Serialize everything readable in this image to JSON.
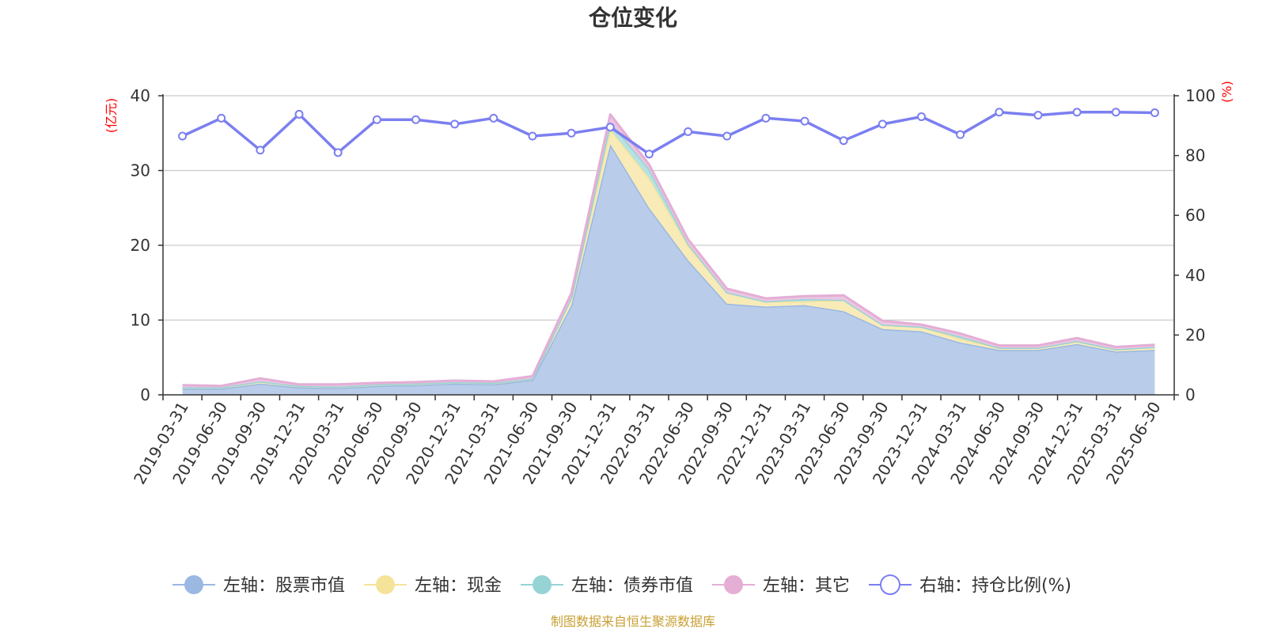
{
  "chart_data": {
    "type": "area",
    "title": "仓位变化",
    "left_axis_unit": "(亿元)",
    "right_axis_unit": "(%)",
    "ylim_left": [
      0,
      40
    ],
    "ylim_right": [
      0,
      100
    ],
    "yticks_left": [
      "0",
      "10",
      "20",
      "30",
      "40"
    ],
    "yticks_right": [
      "0",
      "20",
      "40",
      "60",
      "80",
      "100"
    ],
    "categories": [
      "2019-03-31",
      "2019-06-30",
      "2019-09-30",
      "2019-12-31",
      "2020-03-31",
      "2020-06-30",
      "2020-09-30",
      "2020-12-31",
      "2021-03-31",
      "2021-06-30",
      "2021-09-30",
      "2021-12-31",
      "2022-03-31",
      "2022-06-30",
      "2022-09-30",
      "2022-12-31",
      "2023-03-31",
      "2023-06-30",
      "2023-09-30",
      "2023-12-31",
      "2024-03-31",
      "2024-06-30",
      "2024-09-30",
      "2024-12-31",
      "2025-03-31",
      "2025-06-30"
    ],
    "series": [
      {
        "name": "左轴：股票市值",
        "axis": "left",
        "color": "#9ab8e2",
        "fill": "#b9cdea",
        "values": [
          0.8,
          0.8,
          1.5,
          1.0,
          0.9,
          1.2,
          1.3,
          1.5,
          1.4,
          2.0,
          12.0,
          33.5,
          25.0,
          18.0,
          12.2,
          11.8,
          12.0,
          11.2,
          8.8,
          8.5,
          7.0,
          6.0,
          6.0,
          6.8,
          5.8,
          6.0
        ]
      },
      {
        "name": "左轴：现金",
        "axis": "left",
        "color": "#f5e39a",
        "fill": "#f8ebb8",
        "values": [
          0.2,
          0.2,
          0.3,
          0.2,
          0.2,
          0.2,
          0.2,
          0.2,
          0.2,
          0.2,
          1.0,
          2.0,
          4.0,
          2.0,
          1.5,
          0.7,
          0.5,
          1.5,
          0.6,
          0.6,
          0.5,
          0.3,
          0.3,
          0.4,
          0.3,
          0.4
        ]
      },
      {
        "name": "左轴：债券市值",
        "axis": "left",
        "color": "#96d3d5",
        "fill": "#b5e2e3",
        "values": [
          0.0,
          0.0,
          0.0,
          0.0,
          0.0,
          0.0,
          0.0,
          0.0,
          0.0,
          0.0,
          0.0,
          1.0,
          1.2,
          0.2,
          0.0,
          0.0,
          0.3,
          0.0,
          0.0,
          0.0,
          0.3,
          0.0,
          0.0,
          0.0,
          0.0,
          0.0
        ]
      },
      {
        "name": "左轴：其它",
        "axis": "left",
        "color": "#e4aed5",
        "fill": "#ecc6e2",
        "values": [
          0.3,
          0.2,
          0.4,
          0.2,
          0.3,
          0.2,
          0.2,
          0.2,
          0.2,
          0.3,
          0.6,
          1.0,
          0.6,
          0.6,
          0.5,
          0.4,
          0.4,
          0.6,
          0.5,
          0.3,
          0.4,
          0.3,
          0.3,
          0.4,
          0.3,
          0.3
        ]
      },
      {
        "name": "右轴：持仓比例(%)",
        "axis": "right",
        "color": "#7b7ff0",
        "values": [
          86.5,
          92.5,
          81.8,
          93.8,
          81.0,
          92.0,
          92.0,
          90.5,
          92.5,
          86.5,
          87.5,
          89.5,
          80.5,
          88.0,
          86.5,
          92.5,
          91.5,
          85.0,
          90.5,
          93.0,
          87.0,
          94.5,
          93.5,
          94.5,
          94.5,
          94.3
        ]
      }
    ],
    "legend_position": "bottom-center",
    "grid": true
  },
  "footer": {
    "source": "制图数据来自恒生聚源数据库"
  }
}
